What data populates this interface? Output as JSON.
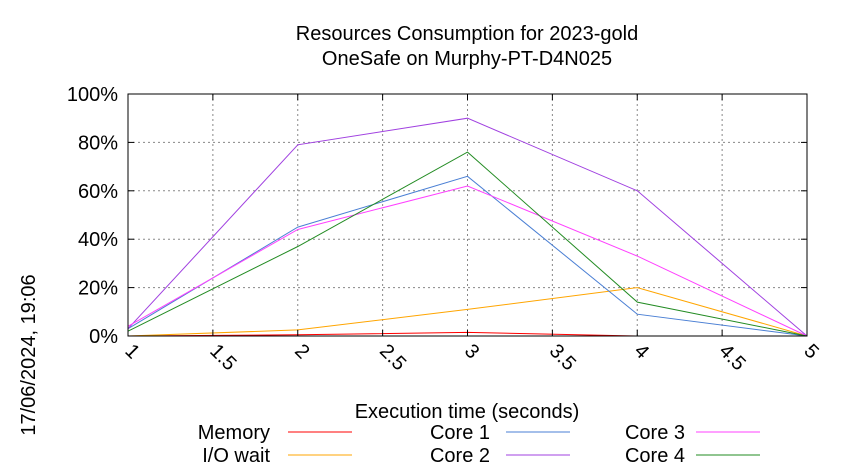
{
  "chart_data": {
    "type": "line",
    "title": "Resources Consumption for 2023-gold",
    "subtitle": "OneSafe on Murphy-PT-D4N025",
    "xlabel": "Execution time (seconds)",
    "ylabel": "",
    "side_text": "17/06/2024, 19:06",
    "xlim": [
      1,
      5
    ],
    "ylim": [
      0,
      100
    ],
    "x_ticks": [
      "1",
      "1.5",
      "2",
      "2.5",
      "3",
      "3.5",
      "4",
      "4.5",
      "5"
    ],
    "y_ticks": [
      "0%",
      "20%",
      "40%",
      "60%",
      "80%",
      "100%"
    ],
    "grid": true,
    "legend_position": "bottom",
    "x": [
      1,
      2,
      3,
      4,
      5
    ],
    "series": [
      {
        "name": "Memory",
        "color": "#ff0000",
        "values": [
          0,
          0.5,
          1.5,
          0,
          0
        ]
      },
      {
        "name": "I/O wait",
        "color": "#ffa500",
        "values": [
          0,
          2.5,
          11,
          20,
          0
        ]
      },
      {
        "name": "Core 1",
        "color": "#4a7fd4",
        "values": [
          3,
          45,
          66,
          9,
          0
        ]
      },
      {
        "name": "Core 2",
        "color": "#a040e0",
        "values": [
          3,
          79,
          90,
          60,
          0
        ]
      },
      {
        "name": "Core 3",
        "color": "#ff40ff",
        "values": [
          4,
          44,
          62,
          33,
          0
        ]
      },
      {
        "name": "Core 4",
        "color": "#228b22",
        "values": [
          2,
          37,
          76,
          14,
          0
        ]
      }
    ]
  }
}
